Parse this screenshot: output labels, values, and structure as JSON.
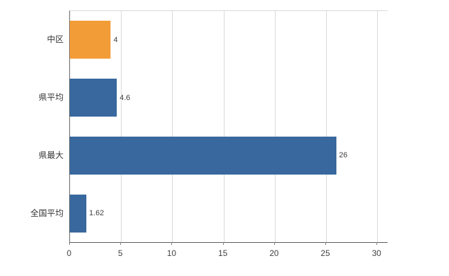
{
  "chart_data": {
    "type": "bar",
    "orientation": "horizontal",
    "title": "",
    "categories": [
      "中区",
      "県平均",
      "県最大",
      "全国平均"
    ],
    "values": [
      4,
      4.6,
      26,
      1.62
    ],
    "value_labels": [
      "4",
      "4.6",
      "26",
      "1.62"
    ],
    "bar_colors": [
      "#F29C38",
      "#38689E",
      "#38689E",
      "#38689E"
    ],
    "xlim": [
      0,
      31
    ],
    "xticks": [
      0,
      5,
      10,
      15,
      20,
      25,
      30
    ],
    "grid": true,
    "legend": "none",
    "xlabel": "",
    "ylabel": ""
  },
  "colors": {
    "background": "#FFFFFF",
    "grid": "#D9D9D9",
    "axis": "#737373",
    "text": "#404040",
    "orange": "#F29C38",
    "blue": "#38689E"
  }
}
